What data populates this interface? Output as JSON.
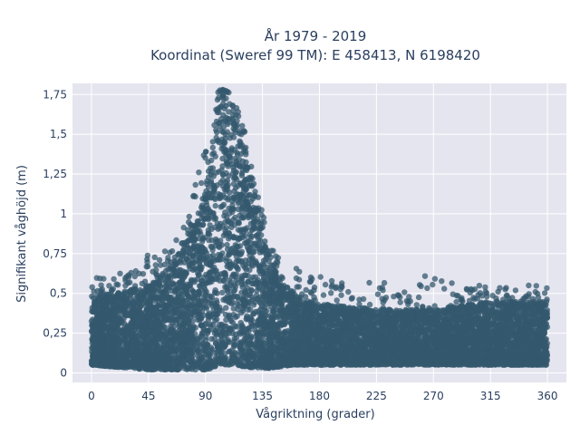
{
  "chart_data": {
    "type": "scatter",
    "title": "År 1979 - 2019",
    "subtitle": "Koordinat (Sweref 99 TM): E 458413, N 6198420",
    "xlabel": "Vågriktning (grader)",
    "ylabel": "Signifikant våghöjd (m)",
    "xlim": [
      -15,
      375
    ],
    "ylim": [
      -0.06,
      1.82
    ],
    "x_ticks": [
      0,
      45,
      90,
      135,
      180,
      225,
      270,
      315,
      360
    ],
    "x_tick_labels": [
      "0",
      "45",
      "90",
      "135",
      "180",
      "225",
      "270",
      "315",
      "360"
    ],
    "y_ticks": [
      0,
      0.25,
      0.5,
      0.75,
      1.0,
      1.25,
      1.5,
      1.75
    ],
    "y_tick_labels": [
      "0",
      "0,25",
      "0,5",
      "0,75",
      "1",
      "1,25",
      "1,5",
      "1,75"
    ],
    "grid": true,
    "legend": "none",
    "marker_color": "#34586e",
    "plot_background": "#e5e5ef",
    "approximate_envelope": {
      "x": [
        0,
        15,
        30,
        45,
        60,
        75,
        90,
        95,
        100,
        105,
        110,
        115,
        120,
        130,
        140,
        150,
        160,
        170,
        180,
        200,
        225,
        250,
        270,
        290,
        315,
        340,
        360
      ],
      "y_min": [
        0.05,
        0.04,
        0.03,
        0.02,
        0.02,
        0.02,
        0.02,
        0.03,
        0.05,
        0.05,
        0.05,
        0.05,
        0.04,
        0.03,
        0.03,
        0.04,
        0.05,
        0.05,
        0.05,
        0.05,
        0.05,
        0.05,
        0.05,
        0.05,
        0.05,
        0.05,
        0.05
      ],
      "y_max_dense": [
        0.48,
        0.5,
        0.52,
        0.55,
        0.65,
        0.85,
        1.15,
        1.4,
        1.75,
        1.78,
        1.7,
        1.6,
        1.45,
        1.1,
        0.75,
        0.55,
        0.5,
        0.45,
        0.43,
        0.42,
        0.4,
        0.4,
        0.4,
        0.42,
        0.45,
        0.45,
        0.45
      ],
      "y_max_outliers": [
        0.62,
        0.62,
        0.63,
        0.75,
        0.78,
        0.95,
        1.45,
        1.5,
        1.78,
        1.78,
        1.76,
        1.7,
        1.55,
        1.2,
        0.85,
        0.72,
        0.7,
        0.6,
        0.62,
        0.58,
        0.58,
        0.55,
        0.66,
        0.55,
        0.55,
        0.55,
        0.55
      ]
    },
    "n_points_shown": "dense (tens of thousands)"
  }
}
